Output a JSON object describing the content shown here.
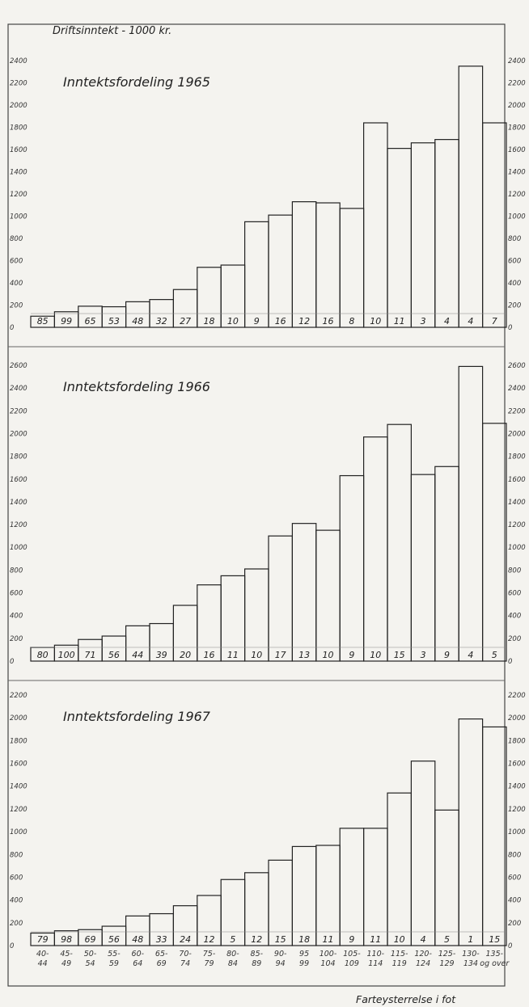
{
  "chart_data": {
    "type": "bar",
    "ylabel": "Driftsinntekt - 1000 kr.",
    "xlabel": "Farteysterrelse i fot",
    "categories": [
      {
        "top": "40-",
        "bottom": "44"
      },
      {
        "top": "45-",
        "bottom": "49"
      },
      {
        "top": "50-",
        "bottom": "54"
      },
      {
        "top": "55-",
        "bottom": "59"
      },
      {
        "top": "60-",
        "bottom": "64"
      },
      {
        "top": "65-",
        "bottom": "69"
      },
      {
        "top": "70-",
        "bottom": "74"
      },
      {
        "top": "75-",
        "bottom": "79"
      },
      {
        "top": "80-",
        "bottom": "84"
      },
      {
        "top": "85-",
        "bottom": "89"
      },
      {
        "top": "90-",
        "bottom": "94"
      },
      {
        "top": "95",
        "bottom": "99"
      },
      {
        "top": "100-",
        "bottom": "104"
      },
      {
        "top": "105-",
        "bottom": "109"
      },
      {
        "top": "110-",
        "bottom": "114"
      },
      {
        "top": "115-",
        "bottom": "119"
      },
      {
        "top": "120-",
        "bottom": "124"
      },
      {
        "top": "125-",
        "bottom": "129"
      },
      {
        "top": "130-",
        "bottom": "134"
      },
      {
        "top": "135-",
        "bottom": "og over"
      }
    ],
    "panels": [
      {
        "title": "Inntektsfordeling 1965",
        "ylim": [
          0,
          2400
        ],
        "yticks": [
          {
            "value": 0,
            "label": "0"
          },
          {
            "value": 200,
            "label": "200"
          },
          {
            "value": 400,
            "label": "400"
          },
          {
            "value": 600,
            "label": "600"
          },
          {
            "value": 800,
            "label": "800"
          },
          {
            "value": 1000,
            "label": "1000"
          },
          {
            "value": 1200,
            "label": "1200"
          },
          {
            "value": 1400,
            "label": "1400"
          },
          {
            "value": 1600,
            "label": "1600"
          },
          {
            "value": 1800,
            "label": "1800"
          },
          {
            "value": 2000,
            "label": "2000"
          },
          {
            "value": 2200,
            "label": "2200"
          },
          {
            "value": 2400,
            "label": "2400"
          }
        ],
        "values": [
          100,
          140,
          190,
          185,
          230,
          250,
          340,
          540,
          560,
          950,
          1010,
          1130,
          1120,
          1070,
          1840,
          1610,
          1660,
          1690,
          2350,
          1840
        ],
        "counts": [
          "85",
          "99",
          "65",
          "53",
          "48",
          "32",
          "27",
          "18",
          "10",
          "9",
          "16",
          "12",
          "16",
          "8",
          "10",
          "11",
          "3",
          "4",
          "4",
          "7"
        ]
      },
      {
        "title": "Inntektsfordeling 1966",
        "ylim": [
          0,
          2600
        ],
        "yticks": [
          {
            "value": 0,
            "label": "0"
          },
          {
            "value": 200,
            "label": "200"
          },
          {
            "value": 400,
            "label": "400"
          },
          {
            "value": 600,
            "label": "600"
          },
          {
            "value": 800,
            "label": "800"
          },
          {
            "value": 1000,
            "label": "1000"
          },
          {
            "value": 1200,
            "label": "1200"
          },
          {
            "value": 1400,
            "label": "1400"
          },
          {
            "value": 1600,
            "label": "1600"
          },
          {
            "value": 1800,
            "label": "1800"
          },
          {
            "value": 2000,
            "label": "2000"
          },
          {
            "value": 2200,
            "label": "2200"
          },
          {
            "value": 2400,
            "label": "2400"
          },
          {
            "value": 2600,
            "label": "2600"
          }
        ],
        "values": [
          120,
          140,
          190,
          220,
          310,
          330,
          490,
          670,
          750,
          810,
          1100,
          1210,
          1150,
          1630,
          1970,
          2080,
          1640,
          1710,
          2590,
          2090
        ],
        "counts": [
          "80",
          "100",
          "71",
          "56",
          "44",
          "39",
          "20",
          "16",
          "11",
          "10",
          "17",
          "13",
          "10",
          "9",
          "10",
          "15",
          "3",
          "9",
          "4",
          "5"
        ]
      },
      {
        "title": "Inntektsfordeling 1967",
        "ylim": [
          0,
          2200
        ],
        "yticks": [
          {
            "value": 0,
            "label": "0"
          },
          {
            "value": 200,
            "label": "200"
          },
          {
            "value": 400,
            "label": "400"
          },
          {
            "value": 600,
            "label": "600"
          },
          {
            "value": 800,
            "label": "800"
          },
          {
            "value": 1000,
            "label": "1000"
          },
          {
            "value": 1200,
            "label": "1200"
          },
          {
            "value": 1400,
            "label": "1400"
          },
          {
            "value": 1600,
            "label": "1600"
          },
          {
            "value": 1800,
            "label": "1800"
          },
          {
            "value": 2000,
            "label": "2000"
          },
          {
            "value": 2200,
            "label": "2200"
          }
        ],
        "values": [
          110,
          130,
          140,
          170,
          260,
          280,
          350,
          440,
          580,
          640,
          750,
          870,
          880,
          1030,
          1030,
          1340,
          1620,
          1190,
          1990,
          1920
        ],
        "counts": [
          "79",
          "98",
          "69",
          "56",
          "48",
          "33",
          "24",
          "12",
          "5",
          "12",
          "15",
          "18",
          "11",
          "9",
          "11",
          "10",
          "4",
          "5",
          "1",
          "15"
        ]
      }
    ]
  }
}
